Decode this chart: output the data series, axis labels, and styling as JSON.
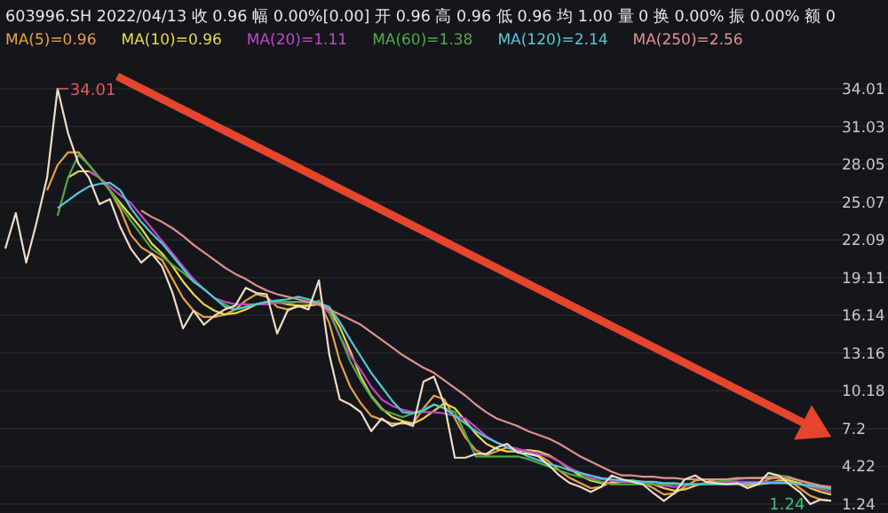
{
  "chart_data": {
    "type": "line",
    "title": "603996.SH 2022/04/13  收 0.96  幅 0.00%[0.00]  开 0.96  高 0.96  低 0.96  均 1.00  量 0  换 0.00%  振 0.00%  额 0",
    "categories": [
      null,
      null,
      null,
      null,
      null,
      null,
      null,
      null,
      null,
      null,
      null,
      null,
      null,
      null,
      null,
      null,
      null,
      null,
      null,
      null,
      null,
      null,
      null,
      null,
      null,
      null,
      null,
      null,
      null,
      null,
      null,
      null,
      null,
      null,
      null,
      null,
      null,
      null,
      null,
      null,
      null,
      null,
      null,
      null,
      null,
      null,
      null,
      null,
      null,
      null,
      null,
      null,
      null,
      null,
      null,
      null,
      null,
      null,
      null,
      null,
      null,
      null,
      null,
      null,
      null,
      null,
      null,
      null,
      null,
      null,
      null,
      null,
      null,
      null,
      null,
      null,
      null,
      null,
      null,
      null
    ],
    "series": [
      {
        "color": "#f0dcc4",
        "values": [
          21.4,
          24.2,
          20.3,
          23.5,
          27.0,
          34.01,
          30.5,
          28.1,
          27.0,
          24.9,
          25.3,
          23.1,
          21.4,
          20.3,
          21.0,
          20.0,
          17.9,
          15.1,
          16.5,
          15.4,
          16.1,
          16.6,
          16.9,
          18.3,
          17.9,
          17.8,
          14.7,
          16.5,
          16.9,
          16.6,
          18.9,
          13.0,
          9.5,
          9.1,
          8.5,
          7.0,
          8.0,
          7.4,
          7.7,
          7.4,
          10.9,
          11.3,
          9.1,
          4.9,
          4.9,
          5.2,
          5.2,
          5.7,
          6.0,
          5.3,
          5.2,
          5.0,
          4.3,
          3.5,
          2.9,
          2.6,
          2.2,
          2.6,
          3.5,
          3.2,
          3.0,
          2.8,
          2.1,
          1.5,
          2.1,
          3.2,
          3.5,
          3.0,
          2.9,
          2.8,
          2.9,
          2.5,
          2.8,
          3.7,
          3.5,
          2.8,
          2.2,
          1.24,
          1.6,
          1.5
        ]
      },
      {
        "name": "MA(5)=0.96",
        "color": "#e8a040",
        "values": [
          null,
          null,
          null,
          null,
          26,
          28,
          29,
          29,
          28,
          27,
          26,
          24.5,
          22.5,
          21.5,
          21,
          20.5,
          19,
          17.5,
          16.5,
          16,
          16,
          16.2,
          16.6,
          17.3,
          17.8,
          17.6,
          16.8,
          16.6,
          16.8,
          16.9,
          17.3,
          15.5,
          12.5,
          10.5,
          9.2,
          8.2,
          7.9,
          7.6,
          7.6,
          7.6,
          8.8,
          9.8,
          9.5,
          8,
          6.5,
          5.5,
          5.1,
          5.4,
          5.7,
          5.6,
          5.3,
          5.1,
          4.6,
          3.9,
          3.3,
          2.9,
          2.5,
          2.6,
          3.0,
          3.1,
          3.1,
          2.9,
          2.5,
          2.0,
          2.1,
          2.6,
          3.1,
          3.2,
          3.0,
          2.9,
          2.9,
          2.7,
          2.8,
          3.2,
          3.4,
          3.1,
          2.5,
          1.9,
          1.6,
          1.5
        ]
      },
      {
        "name": "MA(10)=0.96",
        "color": "#e8d84a",
        "values": [
          null,
          null,
          null,
          null,
          null,
          null,
          27,
          27.5,
          27.5,
          27,
          26,
          25,
          24,
          23,
          21.8,
          21,
          20,
          18.8,
          17.8,
          17,
          16.5,
          16.2,
          16.3,
          16.6,
          17,
          17.2,
          17.2,
          17,
          16.9,
          16.9,
          17,
          16.6,
          15.2,
          13.3,
          11.3,
          9.8,
          8.8,
          8.1,
          7.8,
          7.6,
          8.0,
          8.6,
          9.2,
          8.8,
          7.8,
          6.8,
          6.0,
          5.6,
          5.4,
          5.4,
          5.5,
          5.4,
          5.1,
          4.6,
          4.0,
          3.5,
          3.1,
          2.9,
          2.9,
          3.0,
          3.0,
          3.0,
          2.8,
          2.5,
          2.3,
          2.4,
          2.7,
          2.9,
          3.0,
          3.0,
          3.0,
          2.9,
          2.8,
          2.9,
          3.1,
          3.1,
          2.9,
          2.5,
          2.2,
          2.0
        ]
      },
      {
        "name": "MA(20)=1.11",
        "color": "#c046c8",
        "values": [
          null,
          null,
          null,
          null,
          null,
          null,
          null,
          null,
          27.5,
          27,
          26.3,
          25.6,
          25,
          24,
          23,
          22,
          21,
          20,
          19,
          18.2,
          17.5,
          17.2,
          17,
          17,
          17,
          17,
          17.1,
          17.1,
          17.2,
          17.1,
          17,
          16.3,
          14.5,
          13,
          11.8,
          10.5,
          9.5,
          9,
          8.7,
          8.5,
          8.5,
          8.5,
          8.4,
          8.2,
          8.0,
          7.3,
          6.6,
          6.1,
          5.8,
          5.6,
          5.4,
          5.2,
          5.0,
          4.6,
          4.1,
          3.7,
          3.3,
          3.2,
          3.1,
          3.0,
          3.0,
          2.9,
          2.8,
          2.7,
          2.6,
          2.7,
          2.8,
          2.9,
          3.0,
          3.0,
          3.0,
          3.0,
          3.0,
          3.0,
          3.0,
          2.9,
          2.8,
          2.6,
          2.4,
          2.2
        ]
      },
      {
        "name": "MA(60)=1.38",
        "color": "#52a848",
        "values": [
          null,
          null,
          null,
          null,
          null,
          24,
          27,
          28.8,
          28,
          27,
          26,
          24.8,
          23.6,
          22.5,
          21.4,
          20.8,
          20.1,
          19.5,
          18.8,
          18.2,
          17.5,
          17,
          16.6,
          16.8,
          17,
          17.2,
          17.2,
          17.2,
          17.2,
          17.2,
          17.2,
          16.5,
          14.5,
          12.5,
          11,
          9.7,
          8.7,
          8.4,
          8.1,
          8.4,
          8.7,
          9.1,
          8.8,
          8.5,
          6.8,
          5.0,
          5.0,
          5.0,
          5.0,
          5.0,
          4.8,
          4.5,
          4.2,
          3.9,
          3.6,
          3.4,
          3.2,
          3.0,
          2.8,
          2.8,
          2.8,
          2.8,
          2.8,
          2.8,
          2.8,
          2.8,
          2.8,
          2.9,
          3.0,
          3.1,
          3.2,
          3.3,
          3.3,
          3.4,
          3.5,
          3.4,
          3.1,
          2.8,
          2.5,
          2.4
        ]
      },
      {
        "name": "MA(120)=2.14",
        "color": "#52c8d8",
        "values": [
          null,
          null,
          null,
          null,
          null,
          24.6,
          25.2,
          25.8,
          26.3,
          26.5,
          26.6,
          26,
          24.6,
          23.5,
          22.6,
          21.8,
          20.8,
          19.8,
          18.8,
          18.2,
          17.5,
          16.8,
          16.6,
          16.8,
          17,
          17.2,
          17.3,
          17.4,
          17.6,
          17.4,
          17.1,
          16.8,
          15.6,
          14.2,
          12.9,
          11.6,
          10.5,
          9.4,
          8.5,
          8.4,
          8.6,
          9.1,
          8.8,
          8.2,
          7.6,
          7.0,
          6.5,
          6.1,
          5.7,
          5.4,
          5.0,
          4.7,
          4.4,
          4.2,
          3.9,
          3.7,
          3.5,
          3.3,
          3.2,
          3.1,
          3.1,
          3.0,
          3.0,
          2.9,
          2.9,
          2.8,
          2.8,
          2.8,
          2.8,
          2.8,
          2.8,
          2.9,
          2.9,
          2.9,
          2.9,
          2.9,
          2.8,
          2.7,
          2.6,
          2.5
        ]
      },
      {
        "name": "MA(250)=2.56",
        "color": "#e09090",
        "values": [
          null,
          null,
          null,
          null,
          null,
          null,
          null,
          null,
          null,
          null,
          null,
          null,
          null,
          24.4,
          23.9,
          23.5,
          23.0,
          22.4,
          21.7,
          21.1,
          20.5,
          19.9,
          19.4,
          19,
          18.5,
          18.1,
          17.8,
          17.6,
          17.4,
          17.2,
          17.0,
          16.6,
          16.2,
          15.8,
          15.4,
          14.8,
          14.2,
          13.6,
          13.0,
          12.5,
          12.0,
          11.6,
          11.0,
          10.4,
          9.8,
          9.1,
          8.5,
          8.0,
          7.7,
          7.4,
          7.0,
          6.7,
          6.4,
          6.0,
          5.5,
          5.0,
          4.6,
          4.2,
          3.8,
          3.5,
          3.5,
          3.4,
          3.4,
          3.3,
          3.3,
          3.2,
          3.2,
          3.2,
          3.2,
          3.2,
          3.3,
          3.3,
          3.3,
          3.3,
          3.3,
          3.3,
          3.1,
          2.9,
          2.7,
          2.6
        ]
      }
    ],
    "ylim": [
      1.24,
      34.01
    ],
    "yticks": [
      34.01,
      31.03,
      28.05,
      25.07,
      22.09,
      19.11,
      16.14,
      13.16,
      10.18,
      7.2,
      4.22,
      1.24
    ],
    "grid": "y",
    "legend": "top left",
    "tick_labels": "y",
    "annotations": [
      "34.01",
      "1.24"
    ]
  }
}
